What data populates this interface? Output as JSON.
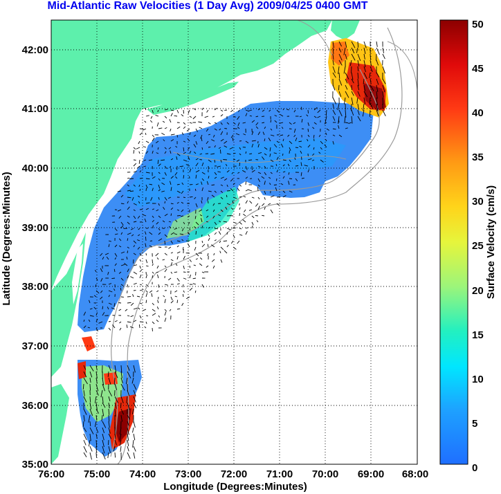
{
  "title": "Mid-Atlantic Raw Velocities (1 Day Avg) 2009/04/25 0400 GMT",
  "x_axis": {
    "label": "Longitude (Degrees:Minutes)",
    "ticks": [
      "76:00",
      "75:00",
      "74:00",
      "73:00",
      "72:00",
      "71:00",
      "70:00",
      "69:00",
      "68:00"
    ]
  },
  "y_axis": {
    "label": "Latitude (Degrees:Minutes)",
    "ticks": [
      "35:00",
      "36:00",
      "37:00",
      "38:00",
      "39:00",
      "40:00",
      "41:00",
      "42:00"
    ]
  },
  "colorbar": {
    "label": "Surface Velocity (cm/s)",
    "ticks": [
      "0",
      "5",
      "10",
      "15",
      "20",
      "25",
      "30",
      "35",
      "40",
      "45",
      "50"
    ],
    "range": [
      0,
      50
    ]
  },
  "colors": {
    "land": "#5df0ac",
    "title": "#0000ee",
    "grid": "#000000",
    "isobath": "#9a9a9a",
    "arrow": "#000000"
  },
  "map": {
    "lon_range": [
      -76,
      -68
    ],
    "lat_range": [
      35,
      42.5
    ],
    "grid": "dotted"
  }
}
